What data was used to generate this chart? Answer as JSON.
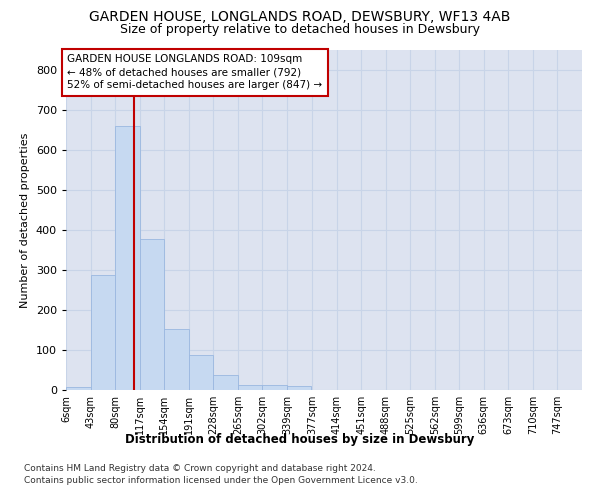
{
  "title": "GARDEN HOUSE, LONGLANDS ROAD, DEWSBURY, WF13 4AB",
  "subtitle": "Size of property relative to detached houses in Dewsbury",
  "xlabel": "Distribution of detached houses by size in Dewsbury",
  "ylabel": "Number of detached properties",
  "footnote1": "Contains HM Land Registry data © Crown copyright and database right 2024.",
  "footnote2": "Contains public sector information licensed under the Open Government Licence v3.0.",
  "bar_edges": [
    6,
    43,
    80,
    117,
    154,
    191,
    228,
    265,
    302,
    339,
    377,
    414,
    451,
    488,
    525,
    562,
    599,
    636,
    673,
    710,
    747
  ],
  "bar_heights": [
    8,
    288,
    660,
    378,
    152,
    88,
    37,
    12,
    12,
    10,
    0,
    0,
    0,
    0,
    0,
    0,
    0,
    0,
    0,
    0
  ],
  "bar_color": "#c6d9f1",
  "bar_edge_color": "#9ab7e0",
  "vline_x": 109,
  "vline_color": "#c00000",
  "annotation_text": "GARDEN HOUSE LONGLANDS ROAD: 109sqm\n← 48% of detached houses are smaller (792)\n52% of semi-detached houses are larger (847) →",
  "annotation_box_color": "#c00000",
  "ylim": [
    0,
    850
  ],
  "yticks": [
    0,
    100,
    200,
    300,
    400,
    500,
    600,
    700,
    800
  ],
  "grid_color": "#c8d4e8",
  "background_color": "#dde3f0",
  "title_fontsize": 10,
  "subtitle_fontsize": 9,
  "ylabel_fontsize": 8,
  "tick_label_fontsize": 7,
  "annotation_fontsize": 7.5,
  "footnote_fontsize": 6.5
}
